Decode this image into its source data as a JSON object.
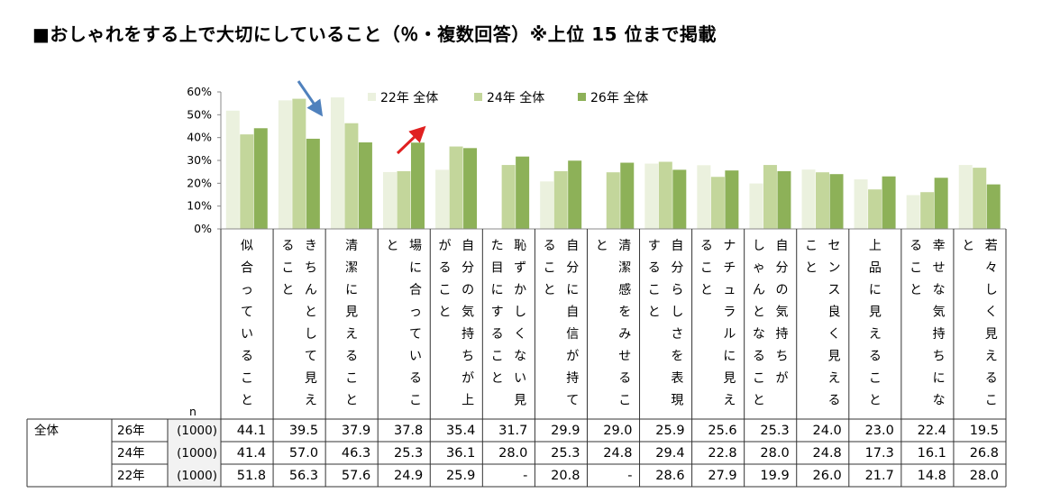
{
  "title": "■おしゃれをする上で大切にしていること（％・複数回答）※上位 15 位まで掲載",
  "n_label": "n",
  "table": {
    "group_label": "全体",
    "rows": [
      {
        "year": "26年",
        "n": "(1000)",
        "values": [
          "44.1",
          "39.5",
          "37.9",
          "37.8",
          "35.4",
          "31.7",
          "29.9",
          "29.0",
          "25.9",
          "25.6",
          "25.3",
          "24.0",
          "23.0",
          "22.4",
          "19.5"
        ]
      },
      {
        "year": "24年",
        "n": "(1000)",
        "values": [
          "41.4",
          "57.0",
          "46.3",
          "25.3",
          "36.1",
          "28.0",
          "25.3",
          "24.8",
          "29.4",
          "22.8",
          "28.0",
          "24.8",
          "17.3",
          "16.1",
          "26.8"
        ]
      },
      {
        "year": "22年",
        "n": "(1000)",
        "values": [
          "51.8",
          "56.3",
          "57.6",
          "24.9",
          "25.9",
          "-",
          "20.8",
          "-",
          "28.6",
          "27.9",
          "19.9",
          "26.0",
          "21.7",
          "14.8",
          "28.0"
        ]
      }
    ]
  },
  "chart_data": {
    "type": "bar",
    "y_ticks": [
      "60%",
      "50%",
      "40%",
      "30%",
      "20%",
      "10%",
      "0%"
    ],
    "ylim": [
      0,
      60
    ],
    "categories": [
      "似合っていること",
      "きちんとして見えること",
      "清潔に見えること",
      "場に合っていること",
      "自分の気持ちが上がること",
      "恥ずかしくない見た目にすること",
      "自分に自信が持てること",
      "清潔感をみせること",
      "自分らしさを表現すること",
      "ナチュラルに見えること",
      "自分の気持ちがしゃんとなること",
      "センス良く見えること",
      "上品に見えること",
      "幸せな気持ちになること",
      "若々しく見えること"
    ],
    "category_columns": [
      [
        "似合っていること"
      ],
      [
        "ること",
        "きちんとして見え"
      ],
      [
        "清潔に見えること"
      ],
      [
        "と",
        "場に合っているこ"
      ],
      [
        "がること",
        "自分の気持ちが上"
      ],
      [
        "た目にすること",
        "恥ずかしくない見"
      ],
      [
        "ること",
        "自分に自信が持て"
      ],
      [
        "と",
        "清潔感をみせるこ"
      ],
      [
        "すること",
        "自分らしさを表現"
      ],
      [
        "ること",
        "ナチュラルに見え"
      ],
      [
        "しゃんとなること",
        "自分の気持ちが"
      ],
      [
        "こと",
        "センス良く見える"
      ],
      [
        "上品に見えること"
      ],
      [
        "ること",
        "幸せな気持ちにな"
      ],
      [
        "と",
        "若々しく見えるこ"
      ]
    ],
    "series": [
      {
        "name": "22年 全体",
        "color": "#ebf1de",
        "values": [
          51.8,
          56.3,
          57.6,
          24.9,
          25.9,
          null,
          20.8,
          null,
          28.6,
          27.9,
          19.9,
          26.0,
          21.7,
          14.8,
          28.0
        ]
      },
      {
        "name": "24年 全体",
        "color": "#c3d69b",
        "values": [
          41.4,
          57.0,
          46.3,
          25.3,
          36.1,
          28.0,
          25.3,
          24.8,
          29.4,
          22.8,
          28.0,
          24.8,
          17.3,
          16.1,
          26.8
        ]
      },
      {
        "name": "26年 全体",
        "color": "#8db158",
        "values": [
          44.1,
          39.5,
          37.9,
          37.8,
          35.4,
          31.7,
          29.9,
          29.0,
          25.9,
          25.6,
          25.3,
          24.0,
          23.0,
          22.4,
          19.5
        ]
      }
    ],
    "legend_position": "top",
    "annotations": [
      {
        "type": "arrow",
        "color": "#4f81bd",
        "direction": "down",
        "category": "きちんとして見えること"
      },
      {
        "type": "arrow",
        "color": "#e02020",
        "direction": "up",
        "category": "場に合っていること"
      }
    ]
  }
}
